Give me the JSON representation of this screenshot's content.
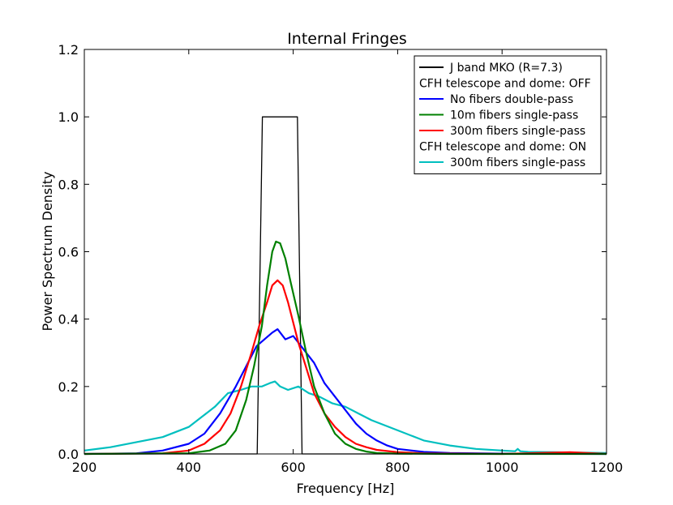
{
  "chart_data": {
    "type": "line",
    "title": "Internal Fringes",
    "xlabel": "Frequency [Hz]",
    "ylabel": "Power Spectrum Density",
    "xlim": [
      200,
      1200
    ],
    "ylim": [
      0.0,
      1.2
    ],
    "xticks": [
      200,
      400,
      600,
      800,
      1000,
      1200
    ],
    "xtick_labels": [
      "200",
      "400",
      "600",
      "800",
      "1000",
      "1200"
    ],
    "yticks": [
      0.0,
      0.2,
      0.4,
      0.6,
      0.8,
      1.0,
      1.2
    ],
    "ytick_labels": [
      "0.0",
      "0.2",
      "0.4",
      "0.6",
      "0.8",
      "1.0",
      "1.2"
    ],
    "grid": false,
    "legend_position": "top-right",
    "legend": [
      {
        "kind": "line",
        "label": "J band MKO (R=7.3)",
        "color": "#000000"
      },
      {
        "kind": "header",
        "label": "CFH telescope and dome: OFF"
      },
      {
        "kind": "line",
        "label": "No fibers double-pass",
        "color": "#0000ff"
      },
      {
        "kind": "line",
        "label": "10m fibers single-pass",
        "color": "#008000"
      },
      {
        "kind": "line",
        "label": "300m fibers single-pass",
        "color": "#ff0000"
      },
      {
        "kind": "header",
        "label": "CFH telescope and dome: ON"
      },
      {
        "kind": "line",
        "label": "300m fibers single-pass",
        "color": "#00bfbf"
      }
    ],
    "series": [
      {
        "name": "J band MKO (R=7.3)",
        "color": "#000000",
        "x": [
          200,
          531,
          541,
          608,
          617,
          1200
        ],
        "y": [
          0.0,
          0.0,
          1.0,
          1.0,
          0.0,
          0.0
        ]
      },
      {
        "name": "300m fibers single-pass (dome ON)",
        "color": "#00bfbf",
        "x": [
          200,
          250,
          300,
          350,
          400,
          425,
          450,
          475,
          500,
          520,
          540,
          555,
          565,
          575,
          590,
          610,
          630,
          650,
          675,
          700,
          725,
          750,
          800,
          850,
          900,
          950,
          1000,
          1025,
          1030,
          1035,
          1050,
          1100,
          1150,
          1200
        ],
        "y": [
          0.01,
          0.02,
          0.035,
          0.05,
          0.08,
          0.11,
          0.14,
          0.18,
          0.19,
          0.2,
          0.2,
          0.21,
          0.215,
          0.2,
          0.19,
          0.2,
          0.18,
          0.17,
          0.15,
          0.14,
          0.12,
          0.1,
          0.07,
          0.04,
          0.025,
          0.015,
          0.01,
          0.008,
          0.015,
          0.008,
          0.006,
          0.005,
          0.004,
          0.003
        ]
      },
      {
        "name": "No fibers double-pass",
        "color": "#0000ff",
        "x": [
          200,
          300,
          350,
          400,
          430,
          460,
          490,
          510,
          530,
          545,
          560,
          570,
          585,
          600,
          620,
          640,
          660,
          680,
          700,
          720,
          740,
          760,
          780,
          800,
          850,
          900,
          1000,
          1200
        ],
        "y": [
          0.0,
          0.002,
          0.01,
          0.03,
          0.06,
          0.12,
          0.2,
          0.26,
          0.32,
          0.34,
          0.36,
          0.37,
          0.34,
          0.35,
          0.31,
          0.27,
          0.21,
          0.17,
          0.13,
          0.09,
          0.06,
          0.04,
          0.025,
          0.015,
          0.006,
          0.003,
          0.001,
          0.0
        ]
      },
      {
        "name": "300m fibers single-pass",
        "color": "#ff0000",
        "x": [
          200,
          350,
          400,
          430,
          460,
          480,
          500,
          520,
          535,
          550,
          560,
          570,
          580,
          590,
          600,
          610,
          620,
          640,
          660,
          680,
          700,
          720,
          740,
          760,
          800,
          850,
          900,
          1000,
          1130,
          1200
        ],
        "y": [
          0.0,
          0.002,
          0.01,
          0.03,
          0.07,
          0.12,
          0.2,
          0.3,
          0.38,
          0.45,
          0.5,
          0.515,
          0.5,
          0.45,
          0.39,
          0.33,
          0.28,
          0.18,
          0.12,
          0.08,
          0.05,
          0.03,
          0.02,
          0.012,
          0.005,
          0.002,
          0.001,
          0.0,
          0.005,
          0.0
        ]
      },
      {
        "name": "10m fibers single-pass",
        "color": "#008000",
        "x": [
          200,
          400,
          440,
          470,
          490,
          510,
          525,
          540,
          550,
          560,
          567,
          575,
          585,
          595,
          610,
          625,
          640,
          660,
          680,
          700,
          720,
          740,
          760,
          800,
          900,
          1200
        ],
        "y": [
          0.0,
          0.002,
          0.01,
          0.03,
          0.07,
          0.16,
          0.26,
          0.38,
          0.5,
          0.6,
          0.63,
          0.625,
          0.58,
          0.51,
          0.41,
          0.3,
          0.2,
          0.12,
          0.06,
          0.03,
          0.015,
          0.007,
          0.003,
          0.001,
          0.0,
          0.0
        ]
      }
    ]
  }
}
